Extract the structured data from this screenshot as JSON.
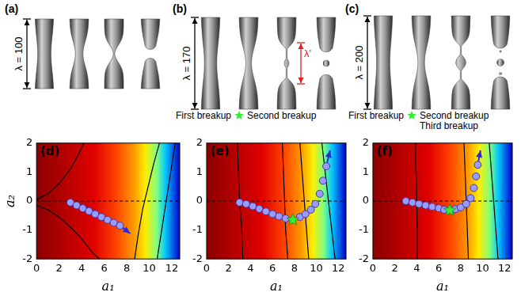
{
  "top_panels": [
    {
      "label": "(a)",
      "lambda_label": "λ = 100"
    },
    {
      "label": "(b)",
      "lambda_label": "λ = 170",
      "secondary_label": "λ'",
      "captions": [
        "First breakup",
        "Second breakup"
      ]
    },
    {
      "label": "(c)",
      "lambda_label": "λ = 200",
      "captions": [
        "First breakup",
        "Second breakup",
        "Third breakup"
      ]
    }
  ],
  "chart_data": [
    {
      "type": "line",
      "title": "(d)",
      "xlabel": "a₁",
      "ylabel": "a₂",
      "grid": false,
      "xlim": [
        0,
        12.7
      ],
      "xticks": [
        0,
        2,
        4,
        6,
        8,
        10,
        12
      ],
      "ylim": [
        -2,
        2
      ],
      "yticks": [
        -2,
        -1,
        0,
        1,
        2
      ],
      "series": [
        {
          "color": "#000000",
          "line_style": "solid",
          "marker": "none",
          "x": [
            0,
            1,
            2,
            3,
            3.7,
            4.2
          ],
          "values": [
            0.05,
            0.25,
            0.6,
            1.1,
            1.6,
            2.0
          ]
        },
        {
          "color": "#000000",
          "line_style": "solid",
          "marker": "none",
          "x": [
            0,
            1,
            2,
            3,
            4,
            5,
            5.6
          ],
          "values": [
            -0.15,
            -0.3,
            -0.55,
            -0.9,
            -1.3,
            -1.8,
            -2.0
          ]
        },
        {
          "color": "#000000",
          "line_style": "solid",
          "marker": "none",
          "x": [
            8.7,
            9.0,
            9.4,
            9.9,
            10.4,
            10.9
          ],
          "values": [
            -2,
            -1.2,
            -0.3,
            0.5,
            1.3,
            2
          ]
        },
        {
          "color": "#000000",
          "line_style": "solid",
          "marker": "none",
          "x": [
            10.7,
            11.1,
            11.5,
            11.9,
            12.3
          ],
          "values": [
            -2,
            -1,
            0,
            1,
            2
          ]
        },
        {
          "color": "#000000",
          "line_style": "dashed",
          "marker": "none",
          "x": [
            0,
            12.7
          ],
          "values": [
            0,
            0
          ]
        },
        {
          "color": "#9a9aff",
          "line_style": "none",
          "marker": "circle",
          "x": [
            3,
            3.55,
            4.1,
            4.65,
            5.2,
            5.75,
            6.3,
            6.85,
            7.4
          ],
          "values": [
            -0.05,
            -0.15,
            -0.25,
            -0.35,
            -0.45,
            -0.55,
            -0.65,
            -0.75,
            -0.85
          ]
        },
        {
          "color": "#2b2bdd",
          "line_style": "solid",
          "marker": "arrow",
          "x": [
            7.4,
            8.3
          ],
          "values": [
            -0.85,
            -1.12
          ]
        }
      ]
    },
    {
      "type": "line",
      "title": "(e)",
      "xlabel": "a₁",
      "grid": false,
      "xlim": [
        0,
        12.7
      ],
      "xticks": [
        0,
        2,
        4,
        6,
        8,
        10,
        12
      ],
      "ylim": [
        -2,
        2
      ],
      "yticks": [
        -2,
        -1,
        0,
        1,
        2
      ],
      "series": [
        {
          "color": "#000000",
          "line_style": "solid",
          "marker": "none",
          "x": [
            3.3,
            3.2,
            3.0,
            2.9,
            2.8
          ],
          "values": [
            -2,
            -1,
            0,
            1,
            2
          ]
        },
        {
          "color": "#000000",
          "line_style": "solid",
          "marker": "none",
          "x": [
            7.4,
            7.2,
            7.1,
            7.0,
            6.9
          ],
          "values": [
            -2,
            -1,
            0,
            1,
            2
          ]
        },
        {
          "color": "#000000",
          "line_style": "solid",
          "marker": "none",
          "x": [
            9.3,
            9.1,
            8.9,
            8.7,
            8.5
          ],
          "values": [
            -2,
            -1,
            0,
            1,
            2
          ]
        },
        {
          "color": "#000000",
          "line_style": "solid",
          "marker": "none",
          "x": [
            11.7,
            11.4,
            11.1,
            10.8,
            10.5
          ],
          "values": [
            -2,
            -1,
            0,
            1,
            2
          ]
        },
        {
          "color": "#000000",
          "line_style": "dashed",
          "marker": "none",
          "x": [
            0,
            12.7
          ],
          "values": [
            0,
            0
          ]
        },
        {
          "color": "#9a9aff",
          "line_style": "none",
          "marker": "circle",
          "x": [
            3,
            3.6,
            4.2,
            4.8,
            5.4,
            6.0,
            6.6,
            7.2,
            8.5,
            9.0,
            9.5,
            9.9,
            10.3,
            10.6,
            10.9
          ],
          "values": [
            -0.05,
            -0.1,
            -0.18,
            -0.27,
            -0.36,
            -0.45,
            -0.53,
            -0.6,
            -0.55,
            -0.45,
            -0.3,
            -0.1,
            0.25,
            0.7,
            1.2
          ]
        },
        {
          "color": "#33ee33",
          "line_style": "none",
          "marker": "star",
          "x": [
            7.85
          ],
          "values": [
            -0.65
          ]
        },
        {
          "color": "#2b2bdd",
          "line_style": "solid",
          "marker": "arrow",
          "x": [
            10.9,
            11.25
          ],
          "values": [
            1.2,
            1.75
          ]
        }
      ]
    },
    {
      "type": "line",
      "title": "(f)",
      "xlabel": "a₁",
      "grid": false,
      "xlim": [
        0,
        12.7
      ],
      "xticks": [
        0,
        2,
        4,
        6,
        8,
        10,
        12
      ],
      "ylim": [
        -2,
        2
      ],
      "yticks": [
        -2,
        -1,
        0,
        1,
        2
      ],
      "series": [
        {
          "color": "#000000",
          "line_style": "solid",
          "marker": "none",
          "x": [
            4.1,
            4.05,
            4.0,
            3.95,
            3.9
          ],
          "values": [
            -2,
            -1,
            0,
            1,
            2
          ]
        },
        {
          "color": "#000000",
          "line_style": "solid",
          "marker": "none",
          "x": [
            8.7,
            8.6,
            8.5,
            8.4,
            8.3
          ],
          "values": [
            -2,
            -1,
            0,
            1,
            2
          ]
        },
        {
          "color": "#000000",
          "line_style": "solid",
          "marker": "none",
          "x": [
            11.4,
            11.2,
            11.0,
            10.8,
            10.6
          ],
          "values": [
            -2,
            -1,
            0,
            1,
            2
          ]
        },
        {
          "color": "#000000",
          "line_style": "dashed",
          "marker": "none",
          "x": [
            0,
            12.7
          ],
          "values": [
            0,
            0
          ]
        },
        {
          "color": "#9a9aff",
          "line_style": "none",
          "marker": "circle",
          "x": [
            3,
            3.6,
            4.2,
            4.8,
            5.4,
            6.0,
            6.5,
            7.5,
            8.0,
            8.5,
            8.9,
            9.2,
            9.4,
            9.55
          ],
          "values": [
            0,
            -0.05,
            -0.1,
            -0.15,
            -0.2,
            -0.25,
            -0.3,
            -0.28,
            -0.22,
            -0.1,
            0.1,
            0.45,
            0.85,
            1.25
          ]
        },
        {
          "color": "#33ee33",
          "line_style": "none",
          "marker": "star",
          "x": [
            7
          ],
          "values": [
            -0.32
          ]
        },
        {
          "color": "#2b2bdd",
          "line_style": "solid",
          "marker": "arrow",
          "x": [
            9.55,
            9.8
          ],
          "values": [
            1.25,
            1.75
          ]
        }
      ]
    }
  ]
}
